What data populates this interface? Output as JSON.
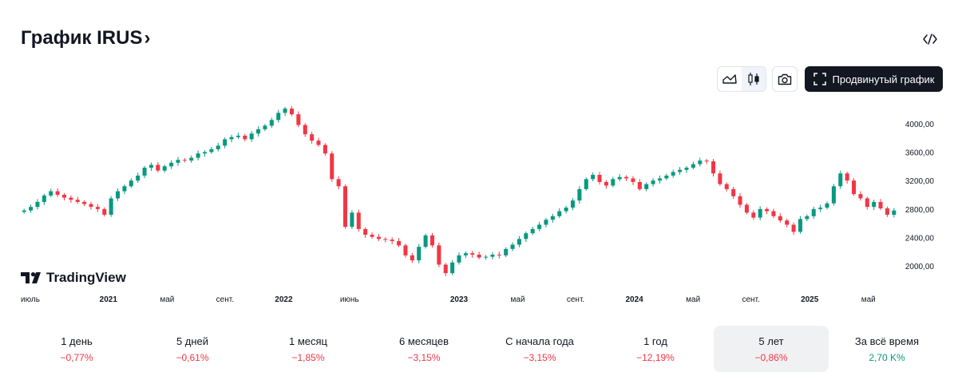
{
  "header": {
    "title": "График IRUS",
    "chevron": "›",
    "embed_icon": "code-icon"
  },
  "toolbar": {
    "area_icon": "area-chart-icon",
    "candles_icon": "candles-icon",
    "camera_icon": "camera-icon",
    "fullscreen_icon": "fullscreen-icon",
    "advanced_label": "Продвинутый график"
  },
  "logo": {
    "text": "TradingView"
  },
  "colors": {
    "up": "#089981",
    "down": "#f23645",
    "text": "#131722",
    "axis": "#131722"
  },
  "chart_data": {
    "type": "candlestick",
    "title": "IRUS",
    "y_ticks": [
      "4000,00",
      "3600,00",
      "3200,00",
      "2800,00",
      "2400,00",
      "2000,00"
    ],
    "y_tick_values": [
      4000,
      3600,
      3200,
      2800,
      2400,
      2000
    ],
    "ylim": [
      1700,
      4300
    ],
    "x_ticks": [
      {
        "label": "июль",
        "t": 0.0
      },
      {
        "label": "2021",
        "t": 0.1
      },
      {
        "label": "май",
        "t": 0.167
      },
      {
        "label": "сент.",
        "t": 0.233
      },
      {
        "label": "2022",
        "t": 0.3
      },
      {
        "label": "июнь",
        "t": 0.375
      },
      {
        "label": "2023",
        "t": 0.5
      },
      {
        "label": "май",
        "t": 0.567
      },
      {
        "label": "сент.",
        "t": 0.633
      },
      {
        "label": "2024",
        "t": 0.7
      },
      {
        "label": "май",
        "t": 0.767
      },
      {
        "label": "сент.",
        "t": 0.833
      },
      {
        "label": "2025",
        "t": 0.9
      },
      {
        "label": "май",
        "t": 0.967
      }
    ],
    "x_tick_bold": [
      "2021",
      "2022",
      "2023",
      "2024",
      "2025"
    ],
    "closes": [
      2780,
      2830,
      2900,
      2990,
      3050,
      3000,
      2960,
      2930,
      2900,
      2870,
      2830,
      2800,
      2720,
      2950,
      3050,
      3120,
      3200,
      3270,
      3380,
      3420,
      3340,
      3400,
      3450,
      3490,
      3480,
      3520,
      3580,
      3600,
      3640,
      3690,
      3780,
      3810,
      3830,
      3780,
      3860,
      3920,
      3970,
      4050,
      4150,
      4210,
      4130,
      3980,
      3850,
      3760,
      3700,
      3580,
      3220,
      3120,
      2550,
      2750,
      2520,
      2440,
      2410,
      2380,
      2370,
      2350,
      2290,
      2150,
      2080,
      2270,
      2430,
      2290,
      2020,
      1900,
      2050,
      2150,
      2180,
      2160,
      2120,
      2130,
      2160,
      2150,
      2240,
      2300,
      2380,
      2460,
      2520,
      2580,
      2650,
      2700,
      2770,
      2820,
      2920,
      3080,
      3220,
      3280,
      3180,
      3130,
      3220,
      3250,
      3230,
      3180,
      3080,
      3150,
      3200,
      3230,
      3270,
      3320,
      3350,
      3380,
      3430,
      3480,
      3470,
      3300,
      3150,
      3080,
      2980,
      2860,
      2750,
      2680,
      2800,
      2770,
      2700,
      2640,
      2580,
      2480,
      2660,
      2700,
      2800,
      2820,
      2880,
      3120,
      3300,
      3200,
      3010,
      2950,
      2830,
      2900,
      2810,
      2720,
      2780
    ],
    "label_low": "1900",
    "label_high": "4210"
  },
  "periods": [
    {
      "label": "1 день",
      "value": "−0,77%",
      "dir": "neg"
    },
    {
      "label": "5 дней",
      "value": "−0,61%",
      "dir": "neg"
    },
    {
      "label": "1 месяц",
      "value": "−1,85%",
      "dir": "neg"
    },
    {
      "label": "6 месяцев",
      "value": "−3,15%",
      "dir": "neg"
    },
    {
      "label": "С начала года",
      "value": "−3,15%",
      "dir": "neg"
    },
    {
      "label": "1 год",
      "value": "−12,19%",
      "dir": "neg"
    },
    {
      "label": "5 лет",
      "value": "−0,86%",
      "dir": "neg",
      "active": true
    },
    {
      "label": "За всё время",
      "value": "2,70 K%",
      "dir": "pos"
    }
  ]
}
